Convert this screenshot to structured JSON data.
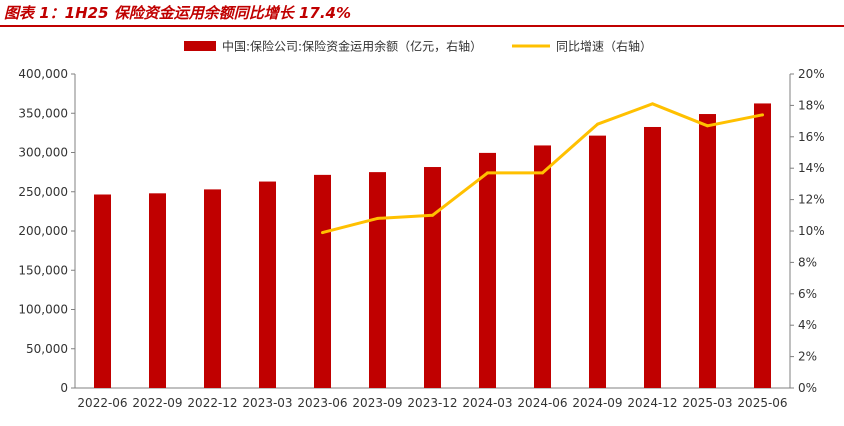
{
  "figure_title": "图表 1：1H25 保险资金运用余额同比增长 17.4%",
  "chart_data": {
    "type": "bar+line",
    "title": "图表 1：1H25 保险资金运用余额同比增长 17.4%",
    "categories": [
      "2022-06",
      "2022-09",
      "2022-12",
      "2023-03",
      "2023-06",
      "2023-09",
      "2023-12",
      "2024-03",
      "2024-06",
      "2024-09",
      "2024-12",
      "2025-03",
      "2025-06"
    ],
    "series": [
      {
        "name": "中国:保险公司:保险资金运用余额（亿元，右轴）",
        "type": "bar",
        "axis": "left",
        "color": "#c00000",
        "values": [
          246500,
          248000,
          253000,
          263000,
          271500,
          275000,
          281500,
          299500,
          309000,
          321500,
          332500,
          349000,
          362500
        ]
      },
      {
        "name": "同比增速（右轴）",
        "type": "line",
        "axis": "right",
        "color": "#ffc000",
        "values": [
          null,
          null,
          null,
          null,
          9.9,
          10.8,
          11.0,
          13.7,
          13.7,
          16.8,
          18.1,
          16.7,
          17.4
        ]
      }
    ],
    "y_left": {
      "min": 0,
      "max": 400000,
      "ticks": [
        "0",
        "50,000",
        "100,000",
        "150,000",
        "200,000",
        "250,000",
        "300,000",
        "350,000",
        "400,000"
      ]
    },
    "y_right": {
      "min": 0,
      "max": 20,
      "ticks": [
        "0%",
        "2%",
        "4%",
        "6%",
        "8%",
        "10%",
        "12%",
        "14%",
        "16%",
        "18%",
        "20%"
      ]
    },
    "legend_position": "top",
    "grid": false
  },
  "colors": {
    "bar": "#c00000",
    "line": "#ffc000",
    "title": "#c00000"
  }
}
